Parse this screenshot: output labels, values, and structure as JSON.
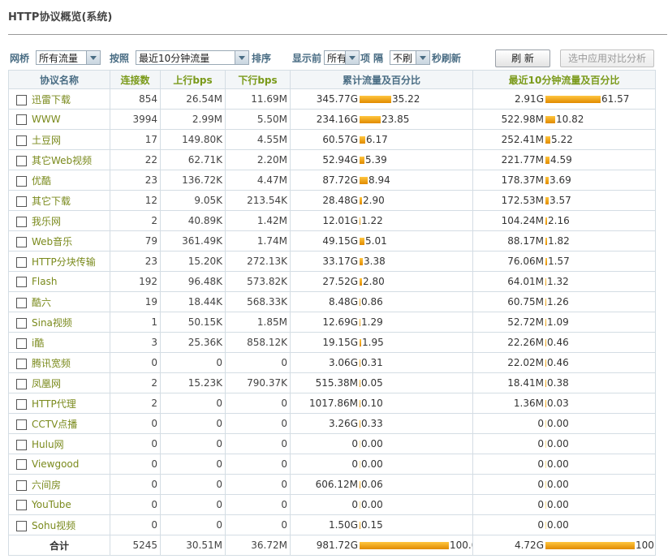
{
  "title": "HTTP协议概览(系统)",
  "toolbar": {
    "bridge_label": "网桥",
    "bridge_value": "所有流量",
    "sort_by_label": "按照",
    "sort_by_value": "最近10分钟流量",
    "sort_label": "排序",
    "show_top_label": "显示前",
    "show_top_value": "所有",
    "item_label": "项",
    "interval_label": "隔",
    "refresh_value": "不刷",
    "refresh_suffix": "秒刷新",
    "refresh_button": "刷 新",
    "compare_button": "选中应用对比分析"
  },
  "columns": [
    "协议名称",
    "连接数",
    "上行bps",
    "下行bps",
    "累计流量及百分比",
    "最近10分钟流量及百分比"
  ],
  "rows": [
    {
      "name": "迅雷下载",
      "conn": "854",
      "up": "26.54M",
      "down": "11.69M",
      "total": "345.77G",
      "total_pct": "35.22",
      "recent": "2.91G",
      "recent_pct": "61.57"
    },
    {
      "name": "WWW",
      "conn": "3994",
      "up": "2.99M",
      "down": "5.50M",
      "total": "234.16G",
      "total_pct": "23.85",
      "recent": "522.98M",
      "recent_pct": "10.82"
    },
    {
      "name": "土豆网",
      "conn": "17",
      "up": "149.80K",
      "down": "4.55M",
      "total": "60.57G",
      "total_pct": "6.17",
      "recent": "252.41M",
      "recent_pct": "5.22"
    },
    {
      "name": "其它Web视频",
      "conn": "22",
      "up": "62.71K",
      "down": "2.20M",
      "total": "52.94G",
      "total_pct": "5.39",
      "recent": "221.77M",
      "recent_pct": "4.59"
    },
    {
      "name": "优酷",
      "conn": "23",
      "up": "136.72K",
      "down": "4.47M",
      "total": "87.72G",
      "total_pct": "8.94",
      "recent": "178.37M",
      "recent_pct": "3.69"
    },
    {
      "name": "其它下载",
      "conn": "12",
      "up": "9.05K",
      "down": "213.54K",
      "total": "28.48G",
      "total_pct": "2.90",
      "recent": "172.53M",
      "recent_pct": "3.57"
    },
    {
      "name": "我乐网",
      "conn": "2",
      "up": "40.89K",
      "down": "1.42M",
      "total": "12.01G",
      "total_pct": "1.22",
      "recent": "104.24M",
      "recent_pct": "2.16"
    },
    {
      "name": "Web音乐",
      "conn": "79",
      "up": "361.49K",
      "down": "1.74M",
      "total": "49.15G",
      "total_pct": "5.01",
      "recent": "88.17M",
      "recent_pct": "1.82"
    },
    {
      "name": "HTTP分块传输",
      "conn": "23",
      "up": "15.20K",
      "down": "272.13K",
      "total": "33.17G",
      "total_pct": "3.38",
      "recent": "76.06M",
      "recent_pct": "1.57"
    },
    {
      "name": "Flash",
      "conn": "192",
      "up": "96.48K",
      "down": "573.82K",
      "total": "27.52G",
      "total_pct": "2.80",
      "recent": "64.01M",
      "recent_pct": "1.32"
    },
    {
      "name": "酷六",
      "conn": "19",
      "up": "18.44K",
      "down": "568.33K",
      "total": "8.48G",
      "total_pct": "0.86",
      "recent": "60.75M",
      "recent_pct": "1.26"
    },
    {
      "name": "Sina视频",
      "conn": "1",
      "up": "50.15K",
      "down": "1.85M",
      "total": "12.69G",
      "total_pct": "1.29",
      "recent": "52.72M",
      "recent_pct": "1.09"
    },
    {
      "name": "i酷",
      "conn": "3",
      "up": "25.36K",
      "down": "858.12K",
      "total": "19.15G",
      "total_pct": "1.95",
      "recent": "22.26M",
      "recent_pct": "0.46"
    },
    {
      "name": "腾讯宽频",
      "conn": "0",
      "up": "0",
      "down": "0",
      "total": "3.06G",
      "total_pct": "0.31",
      "recent": "22.02M",
      "recent_pct": "0.46"
    },
    {
      "name": "凤凰网",
      "conn": "2",
      "up": "15.23K",
      "down": "790.37K",
      "total": "515.38M",
      "total_pct": "0.05",
      "recent": "18.41M",
      "recent_pct": "0.38"
    },
    {
      "name": "HTTP代理",
      "conn": "2",
      "up": "0",
      "down": "0",
      "total": "1017.86M",
      "total_pct": "0.10",
      "recent": "1.36M",
      "recent_pct": "0.03"
    },
    {
      "name": "CCTV点播",
      "conn": "0",
      "up": "0",
      "down": "0",
      "total": "3.26G",
      "total_pct": "0.33",
      "recent": "0",
      "recent_pct": "0.00"
    },
    {
      "name": "Hulu网",
      "conn": "0",
      "up": "0",
      "down": "0",
      "total": "0",
      "total_pct": "0.00",
      "recent": "0",
      "recent_pct": "0.00"
    },
    {
      "name": "Viewgood",
      "conn": "0",
      "up": "0",
      "down": "0",
      "total": "0",
      "total_pct": "0.00",
      "recent": "0",
      "recent_pct": "0.00"
    },
    {
      "name": "六间房",
      "conn": "0",
      "up": "0",
      "down": "0",
      "total": "606.12M",
      "total_pct": "0.06",
      "recent": "0",
      "recent_pct": "0.00"
    },
    {
      "name": "YouTube",
      "conn": "0",
      "up": "0",
      "down": "0",
      "total": "0",
      "total_pct": "0.00",
      "recent": "0",
      "recent_pct": "0.00"
    },
    {
      "name": "Sohu视频",
      "conn": "0",
      "up": "0",
      "down": "0",
      "total": "1.50G",
      "total_pct": "0.15",
      "recent": "0",
      "recent_pct": "0.00"
    }
  ],
  "total": {
    "label": "合计",
    "conn": "5245",
    "up": "30.51M",
    "down": "36.72M",
    "total": "981.72G",
    "total_pct": "100.00",
    "recent": "4.72G",
    "recent_pct": "100.00"
  },
  "colors": {
    "bar": "#f0a800",
    "header_text": "#4a6d84",
    "link": "#7a8a1c"
  }
}
